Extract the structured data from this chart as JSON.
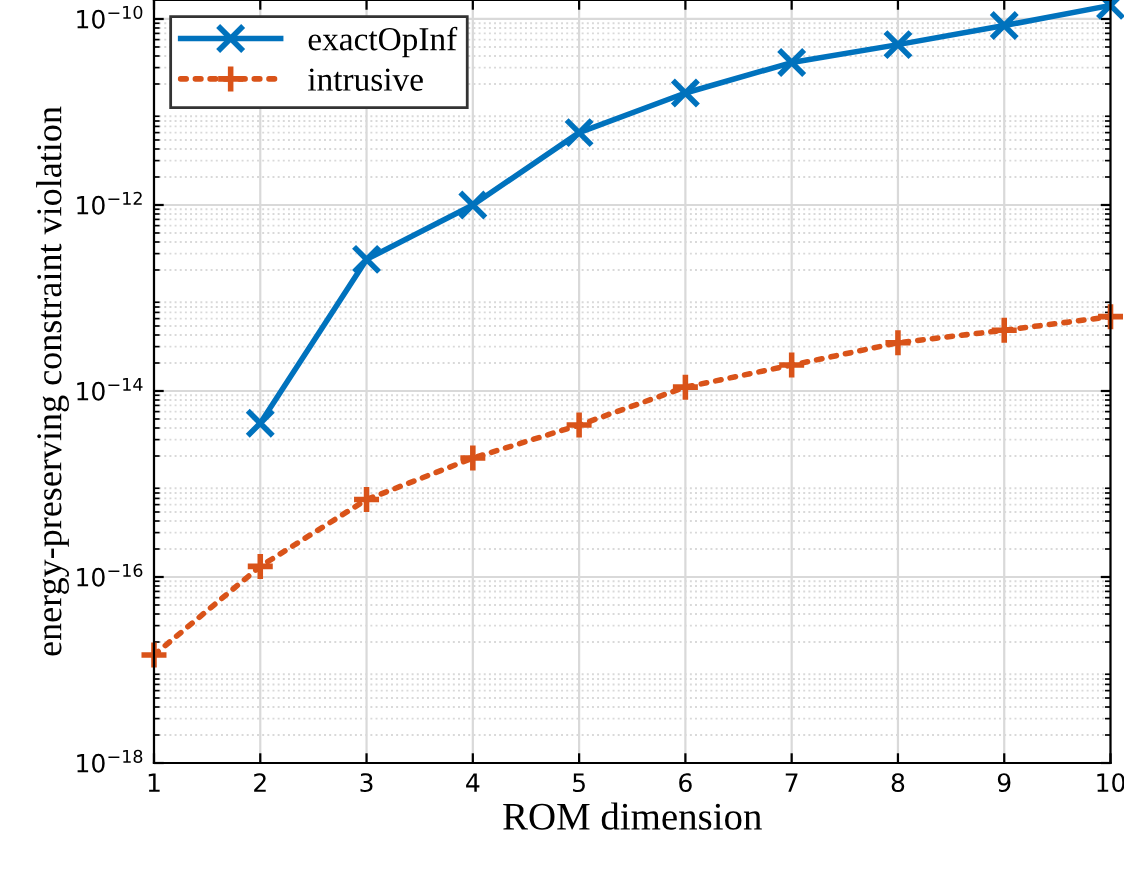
{
  "chart_data": {
    "type": "line",
    "xlabel": "ROM dimension",
    "ylabel": "energy-preserving constraint violation",
    "x": [
      1,
      2,
      3,
      4,
      5,
      6,
      7,
      8,
      9,
      10
    ],
    "series": [
      {
        "name": "exactOpInf",
        "color": "#0072bd",
        "marker": "cross",
        "line_style": "solid",
        "values": [
          null,
          4.5e-15,
          2.6e-13,
          1e-12,
          6e-12,
          1.6e-11,
          3.4e-11,
          5.3e-11,
          8.5e-11,
          1.4e-10
        ]
      },
      {
        "name": "intrusive",
        "color": "#d95319",
        "marker": "plus",
        "line_style": "dotted",
        "values": [
          1.45e-17,
          1.3e-16,
          6.8e-16,
          1.9e-15,
          4.3e-15,
          1.1e-14,
          1.9e-14,
          3.3e-14,
          4.5e-14,
          6.3e-14
        ]
      }
    ],
    "log": "y",
    "xlim": [
      1,
      10
    ],
    "ylim": [
      1e-18,
      1.6e-10
    ],
    "xticks": [
      1,
      2,
      3,
      4,
      5,
      6,
      7,
      8,
      9,
      10
    ],
    "yticks": [
      {
        "value": 1e-18,
        "label": "10$^{−18}$"
      },
      {
        "value": 1e-16,
        "label": "10$^{−16}$"
      },
      {
        "value": 1e-14,
        "label": "10$^{−14}$"
      },
      {
        "value": 1e-12,
        "label": "10$^{−12}$"
      },
      {
        "value": 1e-10,
        "label": "10$^{−10}$"
      }
    ],
    "grid": true,
    "legend": "top left"
  }
}
